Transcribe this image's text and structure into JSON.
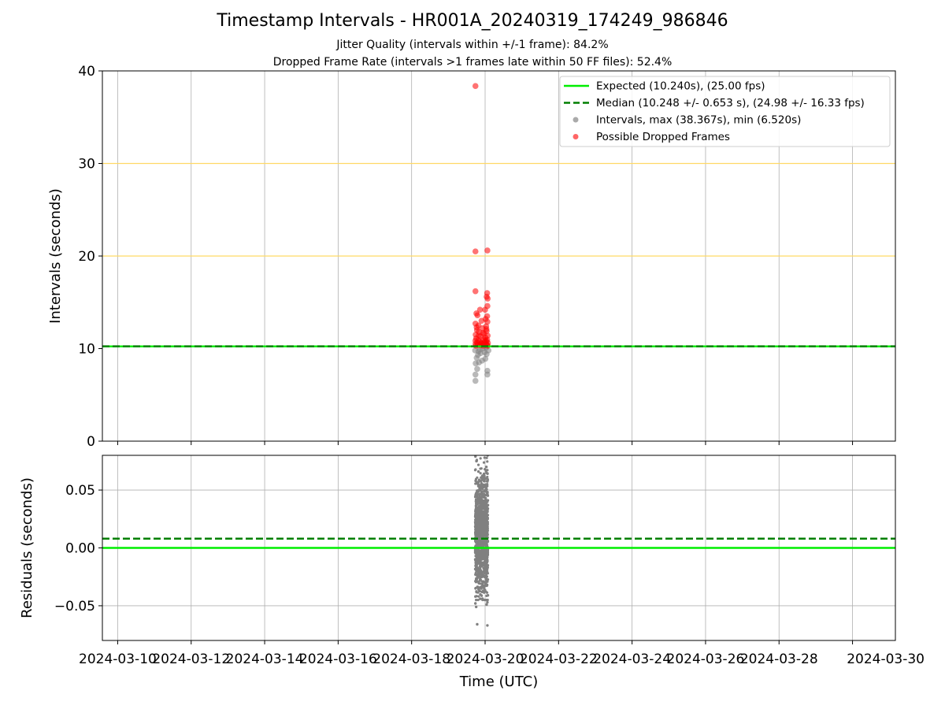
{
  "chart_data": [
    {
      "type": "scatter",
      "title": "Timestamp Intervals - HR001A_20240319_174249_986846",
      "subtitles": [
        "Jitter Quality (intervals within +/-1 frame): 84.2%",
        "Dropped Frame Rate (intervals >1 frames late within 50 FF files): 52.4%"
      ],
      "ylabel": "Intervals (seconds)",
      "xlabel": "",
      "ylim": [
        0,
        40
      ],
      "yticks": [
        0,
        10,
        20,
        30,
        40
      ],
      "xlim": [
        "2024-03-09T14:00",
        "2024-03-31T04:00"
      ],
      "xticks": [
        "2024-03-10",
        "2024-03-12",
        "2024-03-14",
        "2024-03-16",
        "2024-03-18",
        "2024-03-20",
        "2024-03-22",
        "2024-03-24",
        "2024-03-26",
        "2024-03-28",
        "2024-03-30"
      ],
      "grid": "x",
      "reference_lines": [
        {
          "y": 20,
          "color": "#ffd966",
          "style": "solid"
        },
        {
          "y": 30,
          "color": "#ffd966",
          "style": "solid"
        }
      ],
      "legend_position": "top-right",
      "series": [
        {
          "name": "Expected (10.240s), (25.00 fps)",
          "kind": "hline",
          "y": 10.24,
          "color": "#00ee00",
          "style": "solid"
        },
        {
          "name": "Median (10.248 +/- 0.653 s), (24.98 +/- 16.33 fps)",
          "kind": "hline",
          "y": 10.248,
          "color": "#007f00",
          "style": "dashed"
        },
        {
          "name": "Intervals, max (38.367s), min (6.520s)",
          "kind": "points",
          "color": "#808080",
          "points": [
            [
              "2024-03-19T17:42",
              6.52
            ],
            [
              "2024-03-19T17:42",
              7.2
            ],
            [
              "2024-03-19T18:50",
              7.8
            ],
            [
              "2024-03-20T01:30",
              7.2
            ],
            [
              "2024-03-20T01:30",
              7.6
            ],
            [
              "2024-03-19T17:50",
              8.4
            ],
            [
              "2024-03-19T20:00",
              8.5
            ],
            [
              "2024-03-19T22:00",
              8.7
            ],
            [
              "2024-03-20T00:10",
              8.9
            ],
            [
              "2024-03-19T18:30",
              9.0
            ],
            [
              "2024-03-19T19:20",
              9.3
            ],
            [
              "2024-03-19T21:00",
              9.5
            ],
            [
              "2024-03-19T23:40",
              9.6
            ],
            [
              "2024-03-20T01:00",
              9.4
            ],
            [
              "2024-03-19T17:30",
              9.8
            ],
            [
              "2024-03-19T20:40",
              9.9
            ],
            [
              "2024-03-20T02:10",
              9.8
            ],
            [
              "2024-03-19T22:40",
              10.0
            ],
            [
              "2024-03-20T00:40",
              10.1
            ],
            [
              "2024-03-19T19:40",
              9.7
            ]
          ]
        },
        {
          "name": "Possible Dropped Frames",
          "kind": "points",
          "color": "#ff0000",
          "points": [
            [
              "2024-03-19T17:42",
              38.367
            ],
            [
              "2024-03-19T17:42",
              20.5
            ],
            [
              "2024-03-20T01:30",
              20.6
            ],
            [
              "2024-03-19T17:42",
              16.2
            ],
            [
              "2024-03-20T01:20",
              16.0
            ],
            [
              "2024-03-20T01:00",
              15.6
            ],
            [
              "2024-03-20T01:40",
              15.4
            ],
            [
              "2024-03-20T01:30",
              14.6
            ],
            [
              "2024-03-19T20:40",
              14.2
            ],
            [
              "2024-03-20T00:00",
              14.2
            ],
            [
              "2024-03-19T18:20",
              13.8
            ],
            [
              "2024-03-19T19:00",
              13.6
            ],
            [
              "2024-03-20T01:20",
              13.5
            ],
            [
              "2024-03-20T00:20",
              13.2
            ],
            [
              "2024-03-19T21:40",
              13.0
            ],
            [
              "2024-03-19T17:42",
              12.7
            ],
            [
              "2024-03-20T01:30",
              12.9
            ],
            [
              "2024-03-19T19:40",
              12.5
            ],
            [
              "2024-03-20T00:40",
              12.4
            ],
            [
              "2024-03-19T22:20",
              12.2
            ],
            [
              "2024-03-19T18:40",
              12.0
            ],
            [
              "2024-03-20T01:00",
              11.9
            ],
            [
              "2024-03-19T20:00",
              11.8
            ],
            [
              "2024-03-19T23:20",
              11.6
            ],
            [
              "2024-03-19T17:50",
              11.5
            ],
            [
              "2024-03-20T01:40",
              11.4
            ],
            [
              "2024-03-19T21:00",
              11.3
            ],
            [
              "2024-03-20T00:10",
              11.2
            ],
            [
              "2024-03-19T18:10",
              11.1
            ],
            [
              "2024-03-19T22:50",
              11.0
            ],
            [
              "2024-03-20T01:20",
              10.95
            ],
            [
              "2024-03-19T19:30",
              10.9
            ],
            [
              "2024-03-19T17:40",
              10.85
            ],
            [
              "2024-03-20T00:50",
              10.8
            ],
            [
              "2024-03-19T20:30",
              10.75
            ],
            [
              "2024-03-19T23:50",
              10.7
            ],
            [
              "2024-03-19T18:50",
              10.65
            ],
            [
              "2024-03-20T01:50",
              10.6
            ],
            [
              "2024-03-19T21:30",
              10.55
            ],
            [
              "2024-03-19T17:42",
              10.5
            ],
            [
              "2024-03-20T00:30",
              10.5
            ],
            [
              "2024-03-19T22:10",
              10.45
            ],
            [
              "2024-03-19T19:10",
              10.4
            ],
            [
              "2024-03-20T01:10",
              10.4
            ],
            [
              "2024-03-19T20:50",
              10.35
            ],
            [
              "2024-03-19T23:00",
              10.3
            ],
            [
              "2024-03-19T18:00",
              10.3
            ],
            [
              "2024-03-20T01:40",
              10.3
            ],
            [
              "2024-03-19T21:20",
              10.6
            ],
            [
              "2024-03-20T00:00",
              10.9
            ],
            [
              "2024-03-19T19:50",
              11.4
            ],
            [
              "2024-03-19T22:30",
              11.7
            ],
            [
              "2024-03-20T00:50",
              12.1
            ],
            [
              "2024-03-19T18:30",
              12.3
            ]
          ]
        }
      ]
    },
    {
      "type": "scatter",
      "ylabel": "Residuals (seconds)",
      "xlabel": "Time (UTC)",
      "ylim": [
        -0.08,
        0.08
      ],
      "yticks": [
        -0.05,
        0.0,
        0.05
      ],
      "yticklabels": [
        "−0.05",
        "0.00",
        "0.05"
      ],
      "xlim": [
        "2024-03-09T14:00",
        "2024-03-31T04:00"
      ],
      "xticks": [
        "2024-03-10",
        "2024-03-12",
        "2024-03-14",
        "2024-03-16",
        "2024-03-18",
        "2024-03-20",
        "2024-03-22",
        "2024-03-24",
        "2024-03-26",
        "2024-03-28",
        "2024-03-30"
      ],
      "xticklabels": [
        "2024-03-10",
        "2024-03-12",
        "2024-03-14",
        "2024-03-16",
        "2024-03-18",
        "2024-03-20",
        "2024-03-22",
        "2024-03-24",
        "2024-03-26",
        "2024-03-28",
        "2024-03-30"
      ],
      "grid": "both",
      "series": [
        {
          "kind": "hline",
          "y": 0.0,
          "color": "#00ee00",
          "style": "solid"
        },
        {
          "kind": "hline",
          "y": 0.008,
          "color": "#007f00",
          "style": "dashed"
        },
        {
          "kind": "points",
          "color": "#808080",
          "points": [
            [
              "2024-03-19T17:42",
              0.079
            ],
            [
              "2024-03-20T01:40",
              0.08
            ],
            [
              "2024-03-19T18:20",
              0.075
            ],
            [
              "2024-03-20T00:50",
              0.07
            ],
            [
              "2024-03-19T19:40",
              0.066
            ],
            [
              "2024-03-19T22:10",
              0.062
            ],
            [
              "2024-03-19T17:50",
              0.058
            ],
            [
              "2024-03-20T01:20",
              0.055
            ],
            [
              "2024-03-19T20:40",
              0.052
            ],
            [
              "2024-03-19T23:30",
              0.049
            ],
            [
              "2024-03-19T18:40",
              0.046
            ],
            [
              "2024-03-20T00:20",
              0.043
            ],
            [
              "2024-03-19T21:10",
              0.04
            ],
            [
              "2024-03-20T01:50",
              0.037
            ],
            [
              "2024-03-19T19:10",
              0.034
            ],
            [
              "2024-03-19T22:50",
              0.031
            ],
            [
              "2024-03-19T17:40",
              0.028
            ],
            [
              "2024-03-20T00:40",
              0.025
            ],
            [
              "2024-03-19T20:10",
              0.022
            ],
            [
              "2024-03-20T01:30",
              0.019
            ],
            [
              "2024-03-19T18:10",
              0.016
            ],
            [
              "2024-03-19T23:50",
              0.013
            ],
            [
              "2024-03-19T21:40",
              0.01
            ],
            [
              "2024-03-20T00:10",
              0.007
            ],
            [
              "2024-03-19T19:30",
              0.004
            ],
            [
              "2024-03-20T01:10",
              0.001
            ],
            [
              "2024-03-19T17:55",
              -0.002
            ],
            [
              "2024-03-19T22:30",
              -0.005
            ],
            [
              "2024-03-20T00:50",
              -0.008
            ],
            [
              "2024-03-19T20:20",
              -0.011
            ],
            [
              "2024-03-19T18:50",
              -0.014
            ],
            [
              "2024-03-20T01:40",
              -0.017
            ],
            [
              "2024-03-19T23:10",
              -0.02
            ],
            [
              "2024-03-19T21:20",
              -0.023
            ],
            [
              "2024-03-20T00:30",
              -0.026
            ],
            [
              "2024-03-19T19:00",
              -0.029
            ],
            [
              "2024-03-20T01:20",
              -0.032
            ],
            [
              "2024-03-19T17:45",
              -0.035
            ],
            [
              "2024-03-19T22:00",
              -0.038
            ],
            [
              "2024-03-20T01:50",
              -0.041
            ],
            [
              "2024-03-19T20:50",
              -0.044
            ],
            [
              "2024-03-19T17:42",
              -0.042
            ],
            [
              "2024-03-20T01:30",
              -0.047
            ],
            [
              "2024-03-19T17:40",
              -0.048
            ],
            [
              "2024-03-19T18:10",
              -0.051
            ],
            [
              "2024-03-20T01:00",
              -0.049
            ],
            [
              "2024-03-19T18:50",
              -0.066
            ],
            [
              "2024-03-20T01:30",
              -0.067
            ]
          ]
        }
      ]
    }
  ],
  "legend": [
    {
      "label": "Expected (10.240s), (25.00 fps)",
      "swatch": "line",
      "color": "#00ee00"
    },
    {
      "label": "Median (10.248 +/- 0.653 s), (24.98 +/- 16.33 fps)",
      "swatch": "dashed",
      "color": "#007f00"
    },
    {
      "label": "Intervals, max (38.367s), min (6.520s)",
      "swatch": "dot",
      "color": "#aaaaaa"
    },
    {
      "label": "Possible Dropped Frames",
      "swatch": "dot",
      "color": "#ff6666"
    }
  ]
}
